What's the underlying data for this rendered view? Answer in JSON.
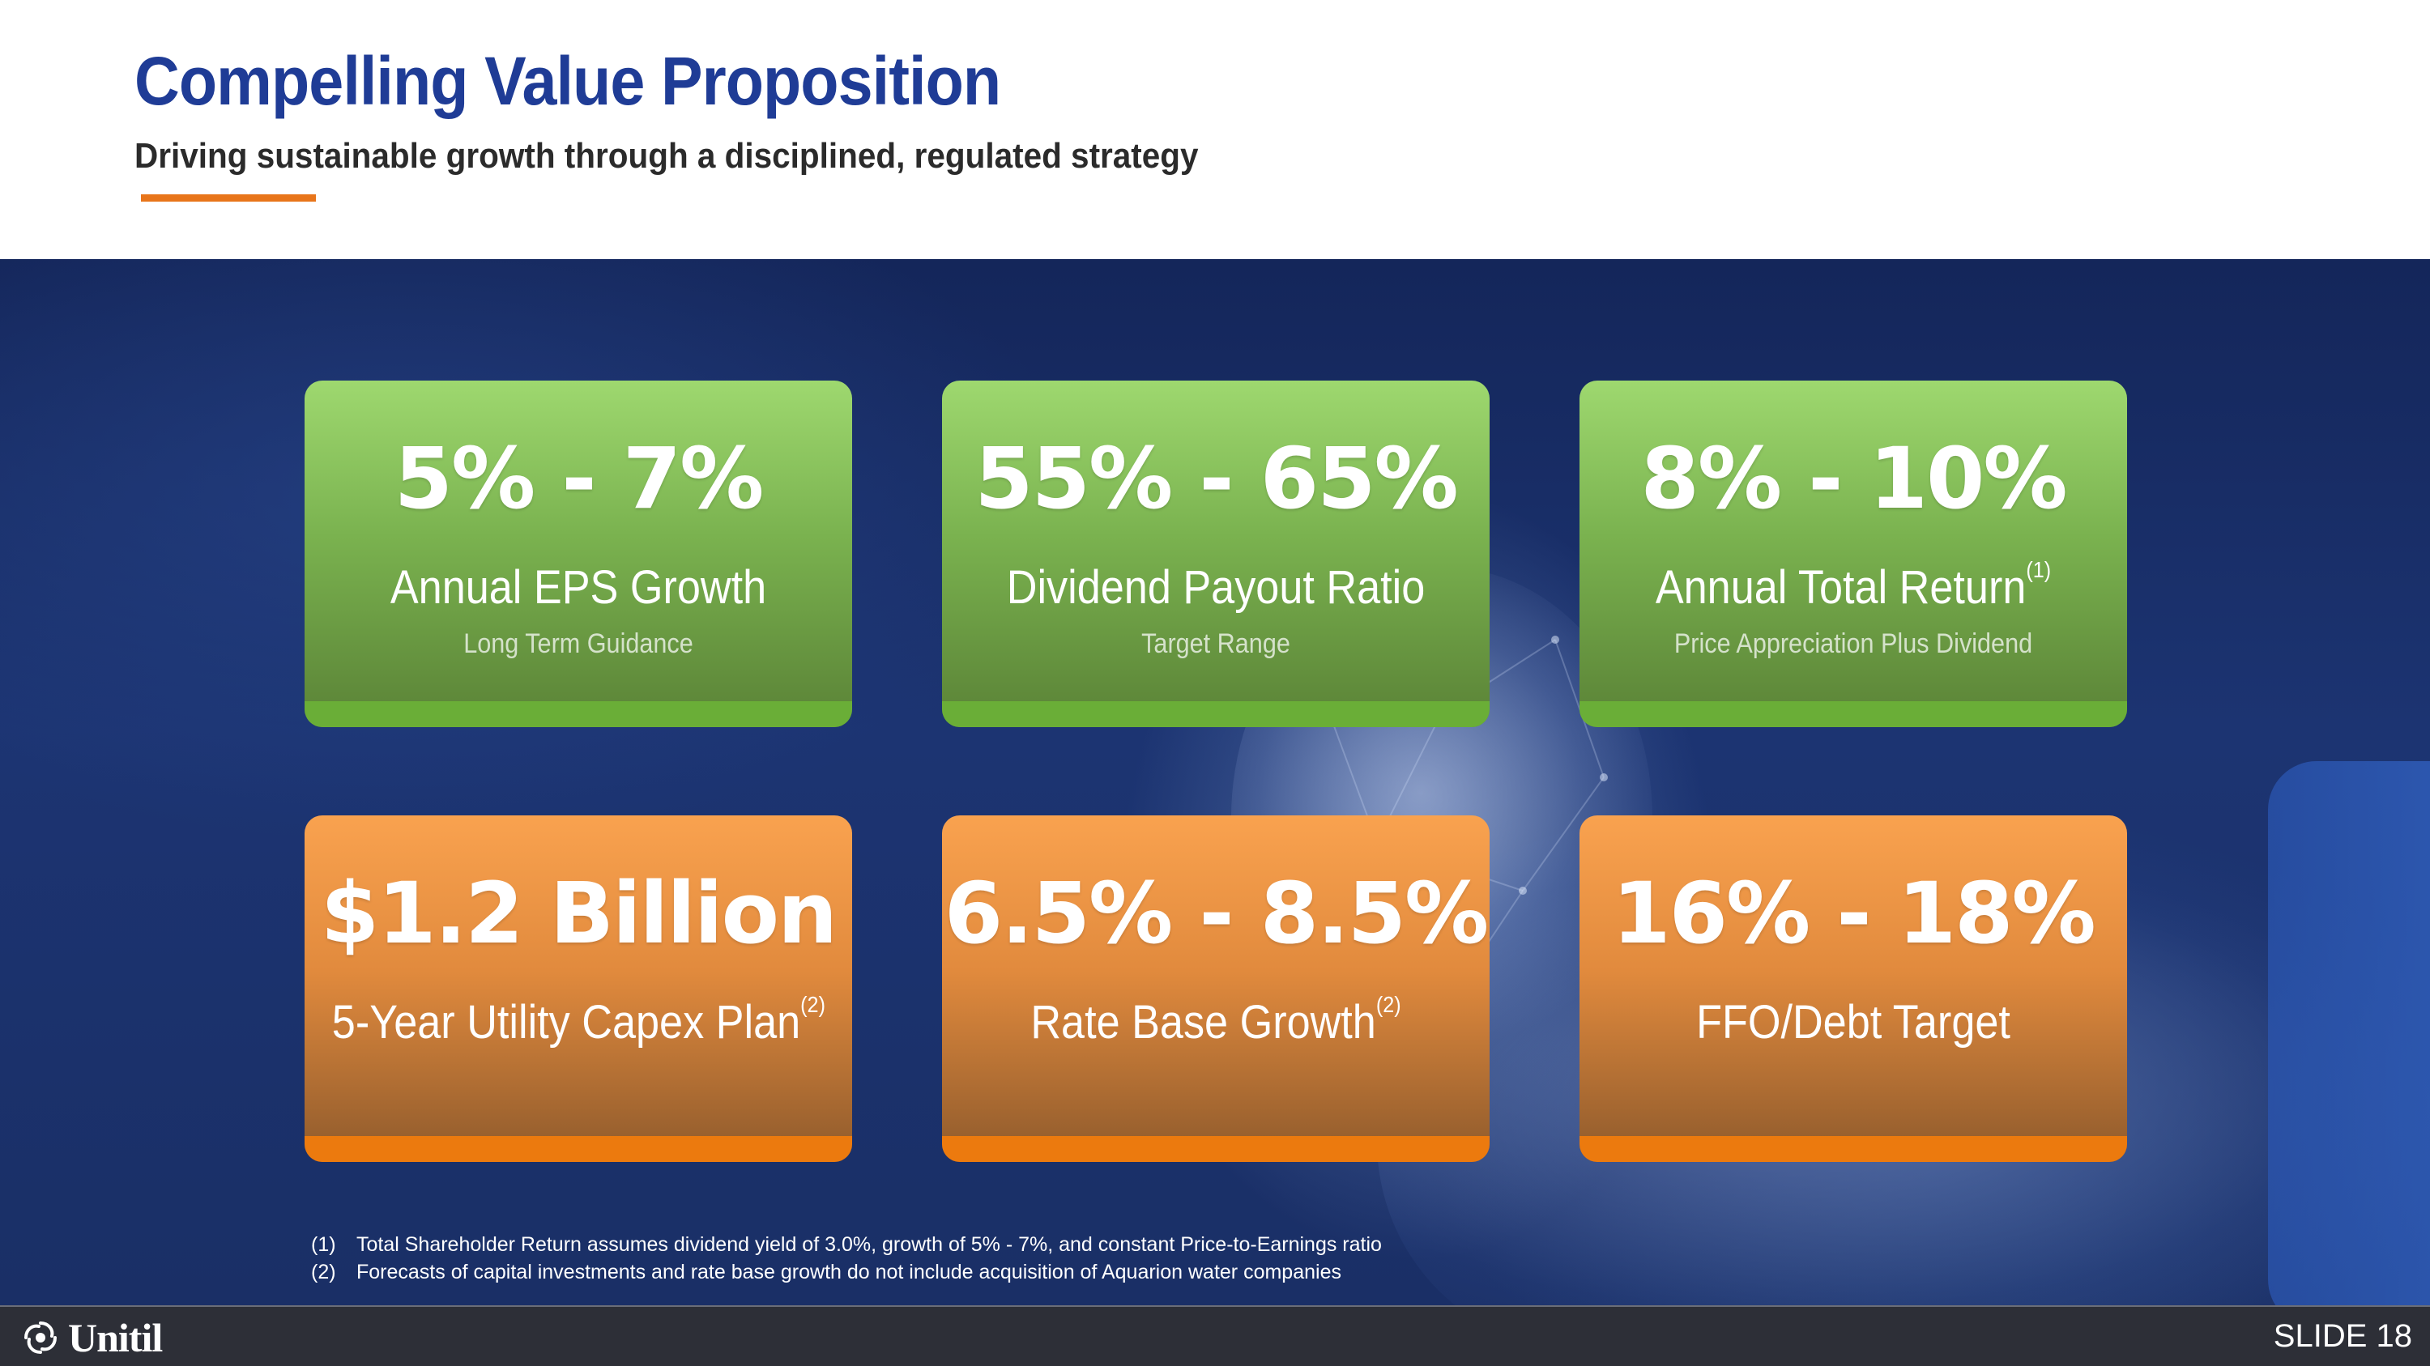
{
  "header": {
    "title": "Compelling Value Proposition",
    "subtitle": "Driving sustainable growth through a disciplined, regulated strategy",
    "accent_color": "#e8751a",
    "title_color": "#1f3c96"
  },
  "cards": [
    {
      "value": "5% - 7%",
      "label": "Annual EPS Growth",
      "note": "",
      "sublabel": "Long Term Guidance",
      "color": "green"
    },
    {
      "value": "55% - 65%",
      "label": "Dividend Payout Ratio",
      "note": "",
      "sublabel": "Target Range",
      "color": "green"
    },
    {
      "value": "8% - 10%",
      "label": "Annual Total Return",
      "note": "(1)",
      "sublabel": "Price Appreciation Plus Dividend",
      "color": "green"
    },
    {
      "value": "$1.2 Billion",
      "label": "5-Year Utility Capex Plan",
      "note": "(2)",
      "sublabel": "",
      "color": "orange"
    },
    {
      "value": "6.5% - 8.5%",
      "label": "Rate Base Growth",
      "note": "(2)",
      "sublabel": "",
      "color": "orange"
    },
    {
      "value": "16% - 18%",
      "label": "FFO/Debt Target",
      "note": "",
      "sublabel": "",
      "color": "orange"
    }
  ],
  "footnotes": [
    {
      "num": "(1)",
      "text": "Total Shareholder Return assumes dividend yield of 3.0%, growth of 5% - 7%, and constant Price-to-Earnings ratio"
    },
    {
      "num": "(2)",
      "text": "Forecasts of capital investments and rate base growth do not include acquisition of Aquarion water companies"
    }
  ],
  "footer": {
    "logo_text": "Unitil",
    "logo_icon": "unitil-swirl-logo-icon",
    "slide_number": "SLIDE 18"
  }
}
